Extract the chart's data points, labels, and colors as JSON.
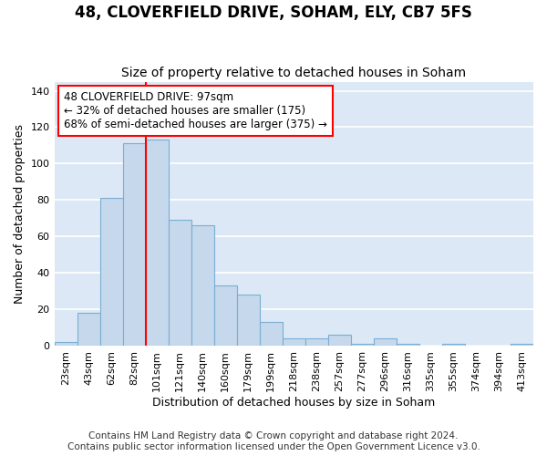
{
  "title": "48, CLOVERFIELD DRIVE, SOHAM, ELY, CB7 5FS",
  "subtitle": "Size of property relative to detached houses in Soham",
  "xlabel": "Distribution of detached houses by size in Soham",
  "ylabel": "Number of detached properties",
  "bar_labels": [
    "23sqm",
    "43sqm",
    "62sqm",
    "82sqm",
    "101sqm",
    "121sqm",
    "140sqm",
    "160sqm",
    "179sqm",
    "199sqm",
    "218sqm",
    "238sqm",
    "257sqm",
    "277sqm",
    "296sqm",
    "316sqm",
    "335sqm",
    "355sqm",
    "374sqm",
    "394sqm",
    "413sqm"
  ],
  "bar_values": [
    2,
    18,
    81,
    111,
    113,
    69,
    66,
    33,
    28,
    13,
    4,
    4,
    6,
    1,
    4,
    1,
    0,
    1,
    0,
    0,
    1
  ],
  "bar_color": "#c5d8ec",
  "bar_edge_color": "#7aaed4",
  "red_line_x": 3.5,
  "annotation_line1": "48 CLOVERFIELD DRIVE: 97sqm",
  "annotation_line2": "← 32% of detached houses are smaller (175)",
  "annotation_line3": "68% of semi-detached houses are larger (375) →",
  "ylim": [
    0,
    145
  ],
  "yticks": [
    0,
    20,
    40,
    60,
    80,
    100,
    120,
    140
  ],
  "footer1": "Contains HM Land Registry data © Crown copyright and database right 2024.",
  "footer2": "Contains public sector information licensed under the Open Government Licence v3.0.",
  "bg_color": "#ffffff",
  "plot_bg_color": "#dce8f5",
  "grid_color": "#ffffff",
  "title_fontsize": 12,
  "subtitle_fontsize": 10,
  "axis_label_fontsize": 9,
  "tick_fontsize": 8,
  "footer_fontsize": 7.5,
  "annot_fontsize": 8.5
}
